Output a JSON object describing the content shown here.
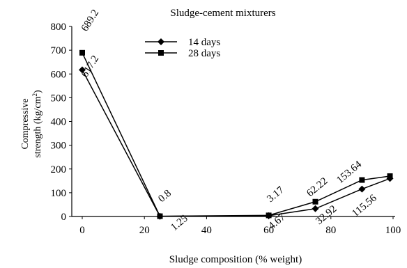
{
  "chart_data": {
    "type": "line",
    "title": "Sludge-cement  mixturers",
    "xlabel": "Sludge composition (% weight)",
    "ylabel_line1": "Compressive",
    "ylabel_line2_prefix": "strength (kg/cm",
    "ylabel_line2_sup": "2",
    "ylabel_line2_suffix": ")",
    "xlim": [
      0,
      100
    ],
    "ylim": [
      0,
      800
    ],
    "xticks": [
      0,
      20,
      40,
      60,
      80,
      100
    ],
    "yticks": [
      0,
      100,
      200,
      300,
      400,
      500,
      600,
      700,
      800
    ],
    "grid": false,
    "legend_position": "top-center",
    "series": [
      {
        "name": "14 days",
        "marker": "diamond",
        "x": [
          0,
          25,
          60,
          75,
          90,
          99
        ],
        "y": [
          617.2,
          0.8,
          3.17,
          32.92,
          115.56,
          160
        ]
      },
      {
        "name": "28 days",
        "marker": "square",
        "x": [
          0,
          25,
          60,
          75,
          90,
          99
        ],
        "y": [
          689.2,
          1.25,
          4.67,
          62.22,
          153.64,
          170
        ]
      }
    ],
    "annotations": [
      {
        "text": "689.2"
      },
      {
        "text": "617.2"
      },
      {
        "text": "0.8"
      },
      {
        "text": "1.25"
      },
      {
        "text": "3.17"
      },
      {
        "text": "4.67"
      },
      {
        "text": "62.22"
      },
      {
        "text": "32.92"
      },
      {
        "text": "153.64"
      },
      {
        "text": "115.56"
      }
    ]
  }
}
